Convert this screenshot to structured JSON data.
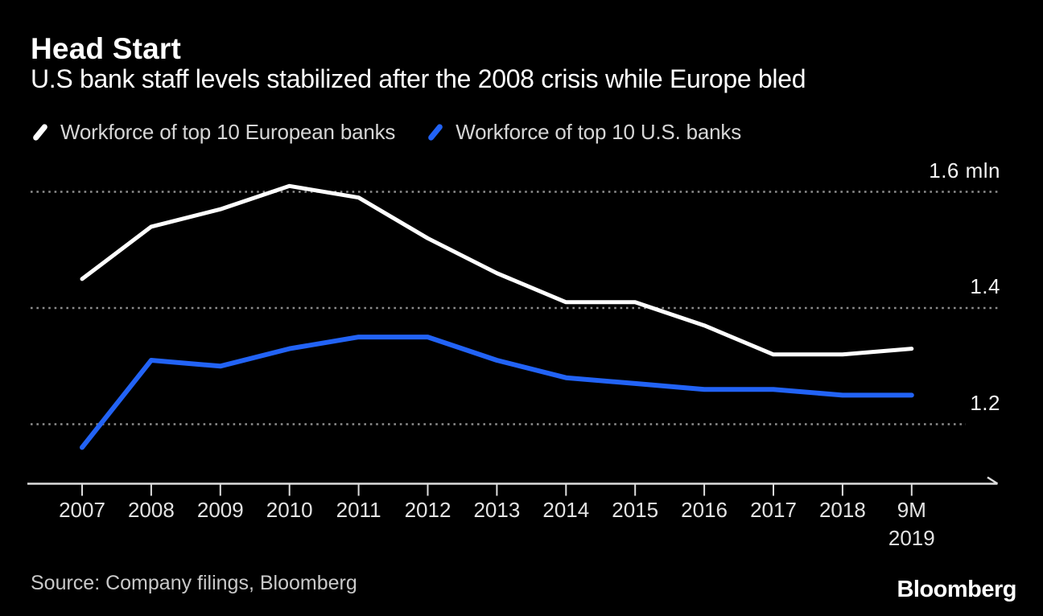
{
  "header": {
    "title": "Head Start",
    "subtitle": "U.S bank staff levels stabilized after the 2008 crisis while Europe bled"
  },
  "legend": {
    "items": [
      {
        "label": "Workforce of top 10 European banks",
        "color": "#ffffff",
        "marker": "slash-icon"
      },
      {
        "label": "Workforce of top 10 U.S. banks",
        "color": "#2263f6",
        "marker": "slash-icon"
      }
    ]
  },
  "chart_data": {
    "type": "line",
    "title": "Head Start",
    "subtitle": "U.S bank staff levels stabilized after the 2008 crisis while Europe bled",
    "unit": "mln",
    "categories": [
      "2007",
      "2008",
      "2009",
      "2010",
      "2011",
      "2012",
      "2013",
      "2014",
      "2015",
      "2016",
      "2017",
      "2018",
      "9M\n2019"
    ],
    "series": [
      {
        "name": "Workforce of top 10 European banks",
        "color": "#ffffff",
        "values": [
          1.45,
          1.54,
          1.57,
          1.61,
          1.59,
          1.52,
          1.46,
          1.41,
          1.41,
          1.37,
          1.32,
          1.32,
          1.33
        ]
      },
      {
        "name": "Workforce of top 10 U.S. banks",
        "color": "#2263f6",
        "values": [
          1.16,
          1.31,
          1.3,
          1.33,
          1.35,
          1.35,
          1.31,
          1.28,
          1.27,
          1.26,
          1.26,
          1.25,
          1.25
        ]
      }
    ],
    "y_ticks": [
      {
        "value": 1.6,
        "label": "1.6 mln"
      },
      {
        "value": 1.4,
        "label": "1.4"
      },
      {
        "value": 1.2,
        "label": "1.2"
      }
    ],
    "ylim": [
      1.1,
      1.67
    ],
    "xlabel": "",
    "ylabel": "mln",
    "grid": "dotted-horizontal",
    "legend_position": "top"
  },
  "footer": {
    "source": "Source: Company filings, Bloomberg",
    "brand": "Bloomberg"
  },
  "colors": {
    "background": "#000000",
    "grid": "#8c8c8c",
    "axis": "#dedede",
    "series_european": "#ffffff",
    "series_us": "#2263f6"
  }
}
